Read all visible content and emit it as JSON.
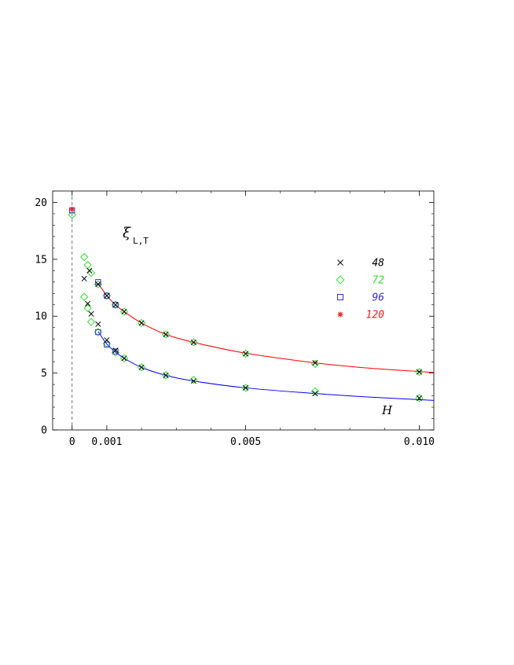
{
  "chart_data": {
    "type": "scatter",
    "title": "",
    "xlabel": "H",
    "ylabel": "ξ",
    "ylabel_sub": "L,T",
    "xlim": [
      -0.00056,
      0.01042
    ],
    "ylim": [
      0,
      21
    ],
    "x_ticks": [
      {
        "value": 0,
        "label": "0"
      },
      {
        "value": 0.001,
        "label": "0.001"
      },
      {
        "value": 0.005,
        "label": "0.005"
      },
      {
        "value": 0.01,
        "label": "0.010"
      }
    ],
    "y_ticks": [
      {
        "value": 0,
        "label": "0"
      },
      {
        "value": 5,
        "label": "5"
      },
      {
        "value": 10,
        "label": "10"
      },
      {
        "value": 15,
        "label": "15"
      },
      {
        "value": 20,
        "label": "20"
      }
    ],
    "grid": false,
    "legend_position": "top-right",
    "zero_line": {
      "x": 0,
      "style": "dashed"
    },
    "series": [
      {
        "name": "48",
        "marker": "x",
        "color": "#000000",
        "points": [
          [
            0.00035,
            13.3
          ],
          [
            0.00045,
            11.1
          ],
          [
            0.00055,
            10.2
          ],
          [
            0.00075,
            9.3
          ],
          [
            0.001,
            7.9
          ],
          [
            0.00125,
            7.0
          ],
          [
            0.0015,
            6.3
          ],
          [
            0.002,
            5.5
          ],
          [
            0.0027,
            4.8
          ],
          [
            0.0035,
            4.3
          ],
          [
            0.005,
            3.7
          ],
          [
            0.007,
            3.2
          ],
          [
            0.01,
            2.8
          ],
          [
            0.0005,
            14.0
          ],
          [
            0.00075,
            12.8
          ],
          [
            0.001,
            11.8
          ],
          [
            0.00125,
            11.0
          ],
          [
            0.0015,
            10.4
          ],
          [
            0.002,
            9.4
          ],
          [
            0.0027,
            8.4
          ],
          [
            0.0035,
            7.7
          ],
          [
            0.005,
            6.7
          ],
          [
            0.007,
            5.9
          ],
          [
            0.01,
            5.1
          ]
        ]
      },
      {
        "name": "72",
        "marker": "diamond",
        "color": "#33dd33",
        "points": [
          [
            0,
            18.9
          ],
          [
            0.00035,
            11.7
          ],
          [
            0.00045,
            10.7
          ],
          [
            0.00055,
            9.5
          ],
          [
            0.00075,
            8.6
          ],
          [
            0.001,
            7.6
          ],
          [
            0.00125,
            6.8
          ],
          [
            0.0015,
            6.3
          ],
          [
            0.002,
            5.5
          ],
          [
            0.0027,
            4.8
          ],
          [
            0.0035,
            4.4
          ],
          [
            0.005,
            3.7
          ],
          [
            0.007,
            3.4
          ],
          [
            0.01,
            2.8
          ],
          [
            0.00035,
            15.2
          ],
          [
            0.00045,
            14.5
          ],
          [
            0.00055,
            13.8
          ],
          [
            0.00075,
            12.8
          ],
          [
            0.001,
            11.8
          ],
          [
            0.00125,
            11.0
          ],
          [
            0.0015,
            10.4
          ],
          [
            0.002,
            9.4
          ],
          [
            0.0027,
            8.4
          ],
          [
            0.0035,
            7.7
          ],
          [
            0.005,
            6.7
          ],
          [
            0.007,
            5.8
          ],
          [
            0.01,
            5.1
          ]
        ]
      },
      {
        "name": "96",
        "marker": "square",
        "color": "#3333cc",
        "points": [
          [
            0,
            19.3
          ],
          [
            0.00075,
            8.6
          ],
          [
            0.001,
            7.5
          ],
          [
            0.00125,
            6.9
          ],
          [
            0.00075,
            13.0
          ],
          [
            0.001,
            11.8
          ],
          [
            0.00125,
            11.0
          ]
        ]
      },
      {
        "name": "120",
        "marker": "asterisk",
        "color": "#ee2222",
        "points": [
          [
            0,
            19.4
          ]
        ]
      }
    ],
    "fit_curves": [
      {
        "color": "#ff0000",
        "points": [
          [
            0.00075,
            12.9
          ],
          [
            0.001,
            11.8
          ],
          [
            0.00125,
            11.0
          ],
          [
            0.0015,
            10.4
          ],
          [
            0.002,
            9.4
          ],
          [
            0.0027,
            8.4
          ],
          [
            0.0035,
            7.7
          ],
          [
            0.005,
            6.75
          ],
          [
            0.007,
            5.9
          ],
          [
            0.0085,
            5.45
          ],
          [
            0.0105,
            5.05
          ]
        ]
      },
      {
        "color": "#0000ff",
        "points": [
          [
            0.00075,
            8.65
          ],
          [
            0.001,
            7.55
          ],
          [
            0.00125,
            6.85
          ],
          [
            0.0015,
            6.3
          ],
          [
            0.002,
            5.5
          ],
          [
            0.0027,
            4.8
          ],
          [
            0.0035,
            4.3
          ],
          [
            0.005,
            3.7
          ],
          [
            0.007,
            3.2
          ],
          [
            0.0085,
            2.9
          ],
          [
            0.0105,
            2.6
          ]
        ]
      }
    ]
  }
}
